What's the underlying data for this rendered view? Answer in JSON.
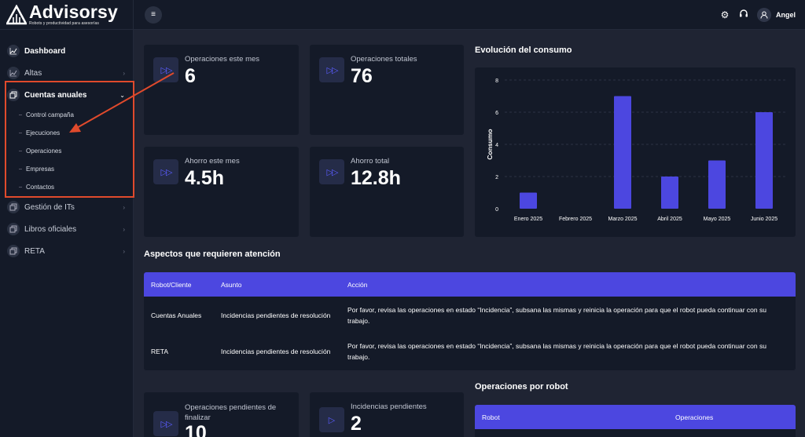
{
  "brand": {
    "name": "Advisorsy",
    "tagline": "Robots y productividad para asesorías"
  },
  "sidebar": {
    "items": [
      {
        "label": "Dashboard",
        "icon": "chart-line-icon"
      },
      {
        "label": "Altas",
        "icon": "chart-line-icon"
      },
      {
        "label": "Cuentas anuales",
        "icon": "files-icon"
      },
      {
        "label": "Gestión de ITs",
        "icon": "files-icon"
      },
      {
        "label": "Libros oficiales",
        "icon": "files-icon"
      },
      {
        "label": "RETA",
        "icon": "files-icon"
      }
    ],
    "subitems": [
      "Control campaña",
      "Ejecuciones",
      "Operaciones",
      "Empresas",
      "Contactos"
    ]
  },
  "topbar": {
    "user": "Angel",
    "icons": [
      "gear-icon",
      "headset-icon",
      "user-icon"
    ]
  },
  "stats": [
    {
      "label": "Operaciones este mes",
      "value": "6",
      "icon": "fast-forward-icon"
    },
    {
      "label": "Operaciones totales",
      "value": "76",
      "icon": "fast-forward-icon"
    },
    {
      "label": "Ahorro este mes",
      "value": "4.5h",
      "icon": "fast-forward-icon"
    },
    {
      "label": "Ahorro total",
      "value": "12.8h",
      "icon": "fast-forward-icon"
    }
  ],
  "chart_section_title": "Evolución del consumo",
  "chart_data": {
    "type": "bar",
    "categories": [
      "Enero 2025",
      "Febrero 2025",
      "Marzo 2025",
      "Abril 2025",
      "Mayo 2025",
      "Junio 2025"
    ],
    "values": [
      1,
      0,
      7,
      2,
      3,
      6
    ],
    "title": "",
    "xlabel": "",
    "ylabel": "Consumo",
    "ylim": [
      0,
      8
    ],
    "yticks": [
      0,
      2,
      4,
      6,
      8
    ],
    "grid": true,
    "bar_color": "#4c47e0"
  },
  "attention": {
    "title": "Aspectos que requieren atención",
    "headers": [
      "Robot/Cliente",
      "Asunto",
      "Acción"
    ],
    "rows": [
      {
        "robot": "Cuentas Anuales",
        "asunto": "Incidencias pendientes de resolución",
        "accion": "Por favor, revisa las operaciones en estado “Incidencia”, subsana las mismas y reinicia la operación para que el robot pueda continuar con su trabajo."
      },
      {
        "robot": "RETA",
        "asunto": "Incidencias pendientes de resolución",
        "accion": "Por favor, revisa las operaciones en estado “Incidencia”, subsana las mismas y reinicia la operación para que el robot pueda continuar con su trabajo."
      }
    ]
  },
  "bottom_stats": [
    {
      "label": "Operaciones pendientes de finalizar",
      "value": "10",
      "icon": "fast-forward-icon"
    },
    {
      "label": "Incidencias pendientes",
      "value": "2",
      "icon": "play-icon"
    }
  ],
  "robots": {
    "title": "Operaciones por robot",
    "headers": [
      "Robot",
      "Operaciones"
    ]
  },
  "colors": {
    "accent": "#4c47e0",
    "highlight": "#e04a2c",
    "background": "#1f2433",
    "card": "#141a28"
  }
}
